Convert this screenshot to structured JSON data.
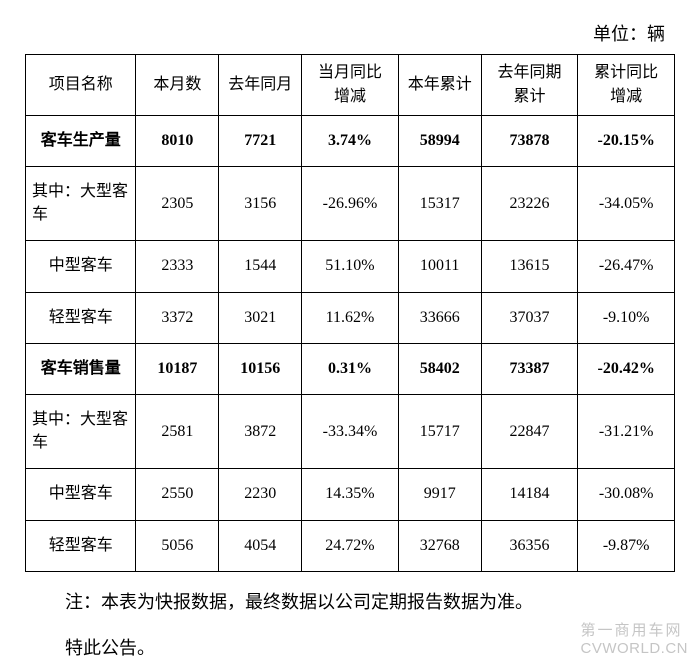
{
  "unit_label": "单位：辆",
  "table": {
    "columns": [
      {
        "label": "项目名称",
        "width": "16%"
      },
      {
        "label": "本月数",
        "width": "12%"
      },
      {
        "label": "去年同月",
        "width": "12%"
      },
      {
        "label": "当月同比\n增减",
        "width": "14%"
      },
      {
        "label": "本年累计",
        "width": "12%"
      },
      {
        "label": "去年同期\n累计",
        "width": "14%"
      },
      {
        "label": "累计同比\n增减",
        "width": "14%"
      }
    ],
    "rows": [
      {
        "bold": true,
        "cells": [
          "客车生产量",
          "8010",
          "7721",
          "3.74%",
          "58994",
          "73878",
          "-20.15%"
        ]
      },
      {
        "bold": false,
        "cells": [
          "其中：大型客车",
          "2305",
          "3156",
          "-26.96%",
          "15317",
          "23226",
          "-34.05%"
        ]
      },
      {
        "bold": false,
        "cells": [
          "中型客车",
          "2333",
          "1544",
          "51.10%",
          "10011",
          "13615",
          "-26.47%"
        ]
      },
      {
        "bold": false,
        "cells": [
          "轻型客车",
          "3372",
          "3021",
          "11.62%",
          "33666",
          "37037",
          "-9.10%"
        ]
      },
      {
        "bold": true,
        "cells": [
          "客车销售量",
          "10187",
          "10156",
          "0.31%",
          "58402",
          "73387",
          "-20.42%"
        ]
      },
      {
        "bold": false,
        "cells": [
          "其中：大型客车",
          "2581",
          "3872",
          "-33.34%",
          "15717",
          "22847",
          "-31.21%"
        ]
      },
      {
        "bold": false,
        "cells": [
          "中型客车",
          "2550",
          "2230",
          "14.35%",
          "9917",
          "14184",
          "-30.08%"
        ]
      },
      {
        "bold": false,
        "cells": [
          "轻型客车",
          "5056",
          "4054",
          "24.72%",
          "32768",
          "36356",
          "-9.87%"
        ]
      }
    ],
    "border_color": "#000000",
    "font_size": 16,
    "background_color": "#ffffff"
  },
  "note": "注：本表为快报数据，最终数据以公司定期报告数据为准。",
  "announcement": "特此公告。",
  "watermark": {
    "cn": "第一商用车网",
    "en": "CVWORLD.CN"
  }
}
